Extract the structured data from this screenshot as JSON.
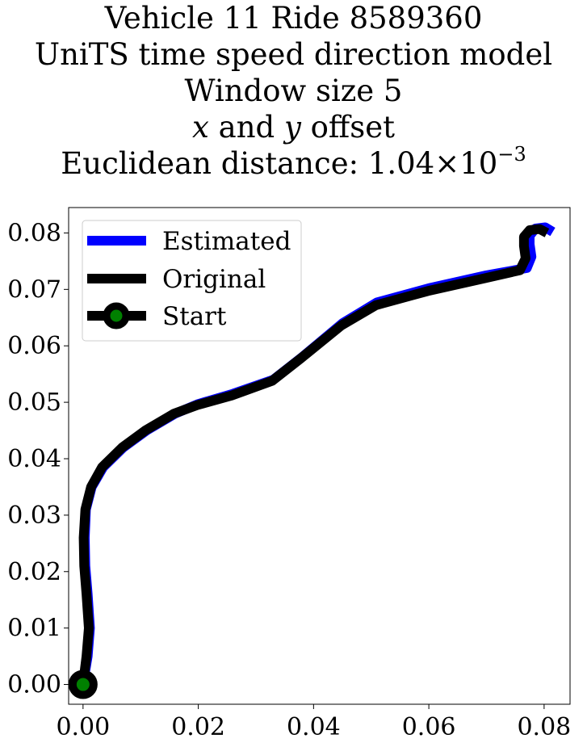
{
  "chart_data": {
    "type": "line",
    "title": {
      "line1": "Vehicle 11 Ride 8589360",
      "line2": "UniTS time speed direction model",
      "line3": "Window size 5",
      "line4_var_x": "x",
      "line4_and": "and",
      "line4_var_y": "y",
      "line4_rest": "offset",
      "line5_prefix": "Euclidean distance: 1.04",
      "line5_times": "×",
      "line5_base": "10",
      "line5_exponent": "−3"
    },
    "xlabel": "",
    "ylabel": "",
    "xlim": [
      -0.0025,
      0.0845
    ],
    "ylim": [
      -0.0035,
      0.0845
    ],
    "xticks": [
      0.0,
      0.02,
      0.04,
      0.06,
      0.08
    ],
    "xtick_labels": [
      "0.00",
      "0.02",
      "0.04",
      "0.06",
      "0.08"
    ],
    "yticks": [
      0.0,
      0.01,
      0.02,
      0.03,
      0.04,
      0.05,
      0.06,
      0.07,
      0.08
    ],
    "ytick_labels": [
      "0.00",
      "0.01",
      "0.02",
      "0.03",
      "0.04",
      "0.05",
      "0.06",
      "0.07",
      "0.08"
    ],
    "grid": false,
    "legend_position": "upper-left",
    "legend": [
      "Estimated",
      "Original",
      "Start"
    ],
    "series": [
      {
        "name": "Estimated",
        "color": "#0000ff",
        "x": [
          0.0,
          0.0008,
          0.0012,
          0.0008,
          0.0004,
          0.0003,
          0.0005,
          0.0015,
          0.0035,
          0.007,
          0.011,
          0.016,
          0.02,
          0.026,
          0.033,
          0.038,
          0.045,
          0.051,
          0.06,
          0.07,
          0.077,
          0.0778,
          0.0775,
          0.0775,
          0.0785,
          0.0802,
          0.0815
        ],
        "y": [
          0.0,
          0.005,
          0.01,
          0.016,
          0.021,
          0.026,
          0.031,
          0.035,
          0.0385,
          0.042,
          0.045,
          0.048,
          0.0497,
          0.0515,
          0.054,
          0.058,
          0.064,
          0.0677,
          0.0702,
          0.0725,
          0.0738,
          0.0758,
          0.078,
          0.0795,
          0.0808,
          0.081,
          0.0802
        ]
      },
      {
        "name": "Original",
        "color": "#000000",
        "x": [
          0.0,
          0.0006,
          0.001,
          0.0006,
          0.0002,
          0.0001,
          0.0004,
          0.0014,
          0.0033,
          0.0068,
          0.0108,
          0.0158,
          0.0198,
          0.0258,
          0.0328,
          0.0378,
          0.0448,
          0.0508,
          0.0598,
          0.0698,
          0.0758,
          0.0768,
          0.0765,
          0.0765,
          0.0775,
          0.0792,
          0.0805
        ],
        "y": [
          0.0,
          0.005,
          0.01,
          0.016,
          0.021,
          0.026,
          0.031,
          0.035,
          0.0385,
          0.042,
          0.045,
          0.048,
          0.0495,
          0.0512,
          0.0538,
          0.0578,
          0.0636,
          0.0672,
          0.0697,
          0.072,
          0.0734,
          0.0755,
          0.0777,
          0.0793,
          0.0805,
          0.0807,
          0.08
        ]
      }
    ],
    "start": {
      "name": "Start",
      "x": 0.0,
      "y": 0.0,
      "edge_color": "#000000",
      "face_color": "#008000"
    }
  }
}
